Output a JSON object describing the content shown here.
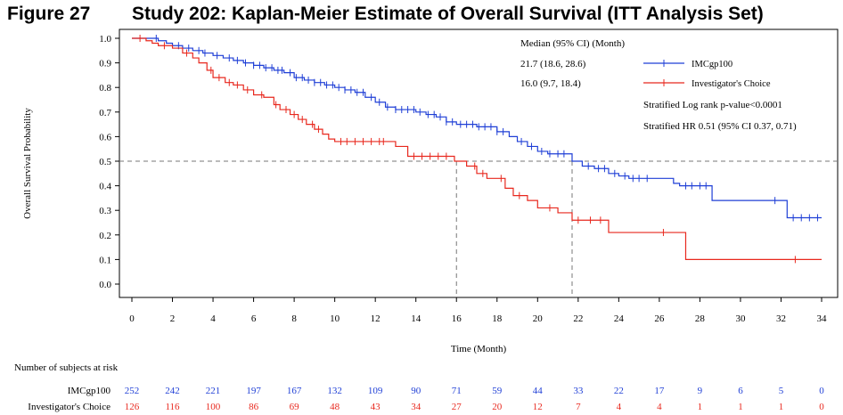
{
  "figure": {
    "number": "Figure 27",
    "title": "Study 202: Kaplan-Meier Estimate of Overall Survival (ITT Analysis Set)"
  },
  "chart_data": {
    "type": "line",
    "subtype": "kaplan-meier",
    "xlabel": "Time (Month)",
    "ylabel": "Overall Survival Probability",
    "xlim": [
      0,
      34
    ],
    "ylim": [
      0.0,
      1.0
    ],
    "xticks": [
      "0",
      "2",
      "4",
      "6",
      "8",
      "10",
      "12",
      "14",
      "16",
      "18",
      "20",
      "22",
      "24",
      "26",
      "28",
      "30",
      "32",
      "34"
    ],
    "yticks": [
      "0.0",
      "0.1",
      "0.2",
      "0.3",
      "0.4",
      "0.5",
      "0.6",
      "0.7",
      "0.8",
      "0.9",
      "1.0"
    ],
    "reference_line_y": 0.5,
    "median_lines_x": [
      16.0,
      21.7
    ],
    "legend_position": "top-right",
    "annotations": {
      "header": "Median (95% CI) (Month)",
      "lines": [
        "21.7 (18.6, 28.6)",
        "16.0 (9.7, 18.4)"
      ],
      "logrank": "Stratified Log rank p-value<0.0001",
      "hr": "Stratified HR 0.51 (95% CI 0.37, 0.71)"
    },
    "series": [
      {
        "name": "IMCgp100",
        "color": "#1f3fd6",
        "steps": [
          [
            0,
            1.0
          ],
          [
            1.3,
            0.99
          ],
          [
            1.7,
            0.98
          ],
          [
            2,
            0.97
          ],
          [
            2.5,
            0.96
          ],
          [
            3,
            0.95
          ],
          [
            3.5,
            0.94
          ],
          [
            4,
            0.93
          ],
          [
            4.5,
            0.92
          ],
          [
            5,
            0.91
          ],
          [
            5.5,
            0.9
          ],
          [
            6,
            0.89
          ],
          [
            6.5,
            0.88
          ],
          [
            7,
            0.87
          ],
          [
            7.5,
            0.86
          ],
          [
            8,
            0.84
          ],
          [
            8.5,
            0.83
          ],
          [
            9,
            0.82
          ],
          [
            9.5,
            0.81
          ],
          [
            10,
            0.8
          ],
          [
            10.5,
            0.79
          ],
          [
            11,
            0.78
          ],
          [
            11.5,
            0.76
          ],
          [
            12,
            0.74
          ],
          [
            12.5,
            0.72
          ],
          [
            13,
            0.71
          ],
          [
            14,
            0.7
          ],
          [
            14.5,
            0.69
          ],
          [
            15,
            0.68
          ],
          [
            15.5,
            0.66
          ],
          [
            16,
            0.65
          ],
          [
            17,
            0.64
          ],
          [
            18,
            0.62
          ],
          [
            18.6,
            0.6
          ],
          [
            19,
            0.58
          ],
          [
            19.5,
            0.56
          ],
          [
            20,
            0.54
          ],
          [
            20.5,
            0.53
          ],
          [
            21.7,
            0.5
          ],
          [
            22.2,
            0.48
          ],
          [
            22.8,
            0.47
          ],
          [
            23.5,
            0.45
          ],
          [
            24,
            0.44
          ],
          [
            24.5,
            0.43
          ],
          [
            26,
            0.43
          ],
          [
            26.7,
            0.41
          ],
          [
            27,
            0.4
          ],
          [
            28.6,
            0.34
          ],
          [
            31,
            0.34
          ],
          [
            32.3,
            0.27
          ],
          [
            34,
            0.27
          ]
        ],
        "censor_x": [
          1.2,
          2.3,
          2.8,
          3.3,
          3.6,
          4.2,
          4.8,
          5.2,
          5.6,
          6.0,
          6.3,
          6.6,
          6.9,
          7.2,
          7.4,
          7.8,
          8.1,
          8.4,
          8.7,
          9.0,
          9.3,
          9.6,
          9.9,
          10.2,
          10.5,
          10.8,
          11.1,
          11.4,
          11.8,
          12.2,
          12.6,
          13.0,
          13.3,
          13.6,
          13.9,
          14.2,
          14.6,
          14.9,
          15.2,
          15.5,
          15.8,
          16.2,
          16.5,
          16.8,
          17.1,
          17.4,
          17.7,
          18.0,
          18.3,
          19.2,
          19.7,
          20.2,
          20.6,
          21.0,
          21.3,
          22.5,
          23.0,
          23.3,
          23.8,
          24.3,
          24.7,
          25.0,
          25.4,
          27.3,
          27.6,
          28.0,
          28.3,
          31.7,
          32.6,
          33.0,
          33.4,
          33.8
        ]
      },
      {
        "name": "Investigator's Choice",
        "color": "#e8281e",
        "steps": [
          [
            0,
            1.0
          ],
          [
            0.7,
            0.99
          ],
          [
            1.0,
            0.98
          ],
          [
            1.3,
            0.97
          ],
          [
            2,
            0.96
          ],
          [
            2.5,
            0.94
          ],
          [
            3,
            0.92
          ],
          [
            3.3,
            0.9
          ],
          [
            3.7,
            0.87
          ],
          [
            4,
            0.84
          ],
          [
            4.6,
            0.82
          ],
          [
            5,
            0.81
          ],
          [
            5.5,
            0.79
          ],
          [
            6,
            0.77
          ],
          [
            6.5,
            0.76
          ],
          [
            7,
            0.73
          ],
          [
            7.3,
            0.71
          ],
          [
            7.8,
            0.69
          ],
          [
            8.2,
            0.67
          ],
          [
            8.6,
            0.65
          ],
          [
            9,
            0.63
          ],
          [
            9.4,
            0.61
          ],
          [
            9.7,
            0.59
          ],
          [
            10,
            0.58
          ],
          [
            12.5,
            0.58
          ],
          [
            13,
            0.56
          ],
          [
            13.6,
            0.52
          ],
          [
            15.9,
            0.5
          ],
          [
            16.5,
            0.48
          ],
          [
            17,
            0.45
          ],
          [
            17.5,
            0.43
          ],
          [
            18.4,
            0.39
          ],
          [
            18.8,
            0.36
          ],
          [
            19.5,
            0.34
          ],
          [
            20,
            0.31
          ],
          [
            21,
            0.29
          ],
          [
            21.7,
            0.26
          ],
          [
            23.5,
            0.21
          ],
          [
            27.3,
            0.1
          ],
          [
            34,
            0.1
          ]
        ],
        "censor_x": [
          0.4,
          1.6,
          2.7,
          3.9,
          4.3,
          4.8,
          5.2,
          5.7,
          6.4,
          7.1,
          7.6,
          8.0,
          8.4,
          8.9,
          9.2,
          10.3,
          10.6,
          11.0,
          11.4,
          11.8,
          12.2,
          12.4,
          13.9,
          14.3,
          14.7,
          15.1,
          15.5,
          16.9,
          17.3,
          18.2,
          19.1,
          20.6,
          22.0,
          22.6,
          23.1,
          26.2,
          32.7
        ]
      }
    ],
    "risk_table": {
      "title": "Number of subjects at risk",
      "times": [
        0,
        2,
        4,
        6,
        8,
        10,
        12,
        14,
        16,
        18,
        20,
        22,
        24,
        26,
        28,
        30,
        32,
        34
      ],
      "rows": [
        {
          "label": "IMCgp100",
          "color": "#1f3fd6",
          "values": [
            "252",
            "242",
            "221",
            "197",
            "167",
            "132",
            "109",
            "90",
            "71",
            "59",
            "44",
            "33",
            "22",
            "17",
            "9",
            "6",
            "5",
            "0"
          ]
        },
        {
          "label": "Investigator's Choice",
          "color": "#e8281e",
          "values": [
            "126",
            "116",
            "100",
            "86",
            "69",
            "48",
            "43",
            "34",
            "27",
            "20",
            "12",
            "7",
            "4",
            "4",
            "1",
            "1",
            "1",
            "0"
          ]
        }
      ]
    }
  }
}
